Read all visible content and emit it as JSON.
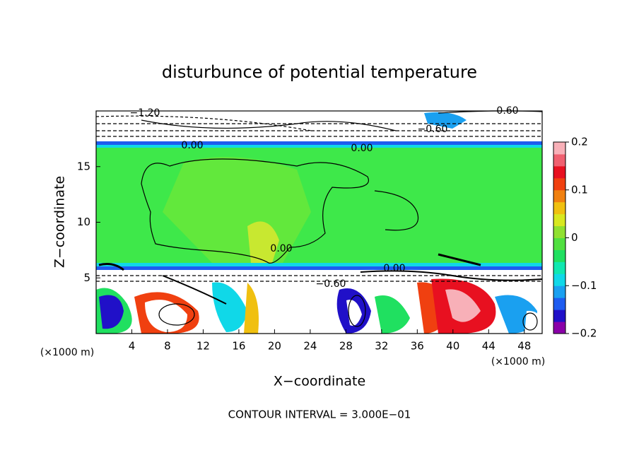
{
  "chart_data": {
    "type": "contour",
    "title": "disturbunce of potential temperature",
    "xlabel": "X−coordinate",
    "ylabel": "Z−coordinate",
    "x_unit_label": "(×1000 m)",
    "note": "CONTOUR INTERVAL = 3.000E−01",
    "xlim": [
      0,
      50
    ],
    "xticks": [
      4,
      8,
      12,
      16,
      20,
      24,
      28,
      32,
      36,
      40,
      44,
      48
    ],
    "ylim": [
      0,
      20
    ],
    "yticks": [
      5,
      10,
      15
    ],
    "colorbar": {
      "lim": [
        -0.2,
        0.2
      ],
      "ticks": [
        0.2,
        0.1,
        0,
        {
          "value": -0.1,
          "label": "−0.1"
        },
        {
          "value": -0.2,
          "label": "−0.2"
        }
      ],
      "colors": [
        "#8a00a8",
        "#2010c8",
        "#1e5cf0",
        "#1aa0f0",
        "#10d8e8",
        "#10e8b0",
        "#20e060",
        "#50e040",
        "#90e030",
        "#d8e820",
        "#f0c010",
        "#f08010",
        "#f04010",
        "#e81020",
        "#f06070",
        "#f8b0b8"
      ]
    },
    "contour_labels": [
      "0.00",
      "0.00",
      "0.00",
      "0.00",
      "−0.60",
      "0.60",
      "−0.60",
      "−1.20"
    ]
  }
}
